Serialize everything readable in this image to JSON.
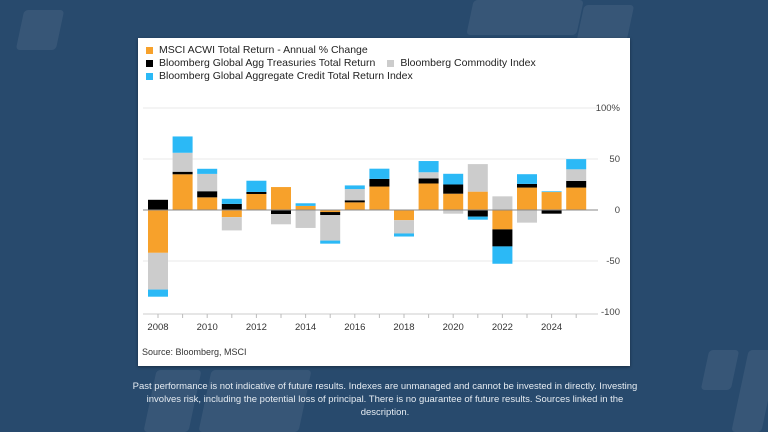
{
  "chart_data": {
    "type": "bar",
    "stacked": true,
    "title": "",
    "xlabel": "",
    "ylabel": "",
    "ylim": [
      -100,
      100
    ],
    "yticks": [
      {
        "value": 100,
        "label": "100%"
      },
      {
        "value": 50,
        "label": "50"
      },
      {
        "value": 0,
        "label": "0"
      },
      {
        "value": -50,
        "label": "-50"
      },
      {
        "value": -100,
        "label": "-100"
      }
    ],
    "xtick_labels": [
      "2008",
      "2010",
      "2012",
      "2014",
      "2016",
      "2018",
      "2020",
      "2022",
      "2024"
    ],
    "categories": [
      "2008",
      "2009",
      "2010",
      "2011",
      "2012",
      "2013",
      "2014",
      "2015",
      "2016",
      "2017",
      "2018",
      "2019",
      "2020",
      "2021",
      "2022",
      "2023",
      "2024",
      "2025"
    ],
    "grid": true,
    "legend_position": "top-left",
    "series": [
      {
        "name": "MSCI ACWI Total Return - Annual % Change",
        "color": "#f7a12b",
        "values": [
          -42,
          35,
          12.4,
          -7,
          15.7,
          22.5,
          4,
          -2,
          7.5,
          23,
          -10,
          26,
          16,
          18,
          -19,
          22,
          17.6,
          22
        ]
      },
      {
        "name": "Bloomberg Global Agg Treasuries Total Return",
        "color": "#000000",
        "values": [
          10,
          2.5,
          6,
          6,
          2,
          -4,
          0,
          -3,
          2,
          7.5,
          0,
          5,
          9,
          -6.5,
          -16.7,
          3.6,
          -3.6,
          6.5
        ]
      },
      {
        "name": "Bloomberg Commodity Index",
        "color": "#cccccc",
        "values": [
          -36,
          18.6,
          17,
          -13,
          0,
          -10,
          -17.6,
          -25,
          11,
          0,
          -13,
          6,
          -3.6,
          27,
          13.4,
          -12.4,
          0,
          11.4
        ]
      },
      {
        "name": "Bloomberg Global Aggregate Credit Total Return Index",
        "color": "#2bb9f6",
        "values": [
          -7,
          16,
          5,
          5,
          11,
          0,
          2.6,
          -3,
          3.6,
          10,
          -3,
          11,
          10.5,
          -3,
          -17,
          9.5,
          0.7,
          10
        ]
      }
    ]
  },
  "source": "Source: Bloomberg, MSCI",
  "disclaimer": "Past performance is not indicative of future results. Indexes are unmanaged and cannot be invested in directly. Investing involves risk, including the potential loss of principal. There is no guarantee of future results. Sources linked in the description."
}
